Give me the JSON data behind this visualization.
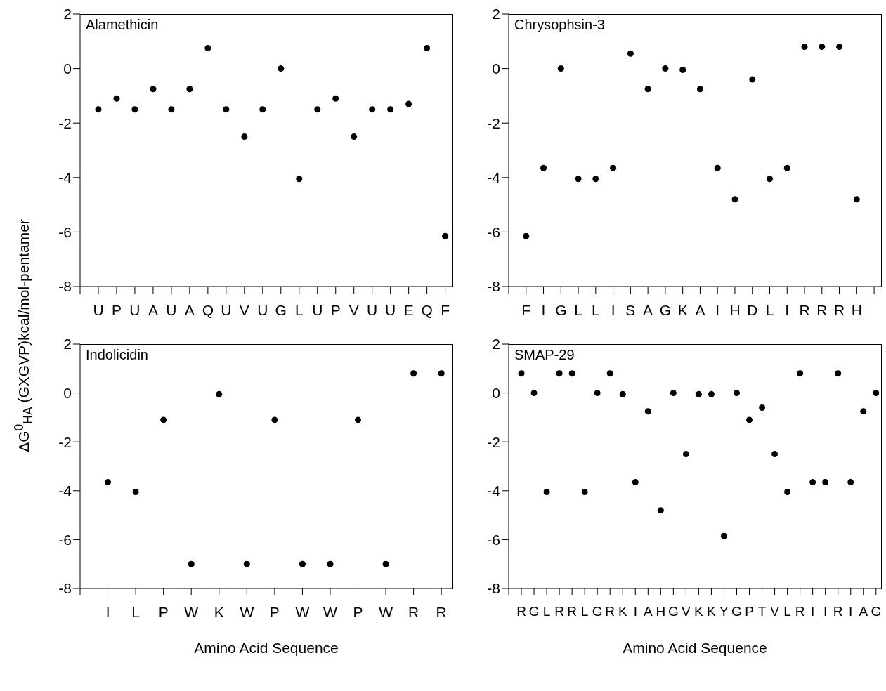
{
  "chart_data": [
    {
      "type": "scatter",
      "title": "Alamethicin",
      "ylabel": "ΔG$^{0}$$_{HA}$ (GXGVP)kcal/mol-pentamer",
      "categories": [
        null,
        "U",
        "P",
        "U",
        "A",
        "U",
        "A",
        "Q",
        "U",
        "V",
        "U",
        "G",
        "L",
        "U",
        "P",
        "V",
        "U",
        "U",
        "E",
        "Q",
        "F"
      ],
      "values": [
        null,
        -1.5,
        -1.1,
        -1.5,
        -0.75,
        -1.5,
        -0.75,
        0.75,
        -1.5,
        -2.5,
        -1.5,
        0,
        -4.05,
        -1.5,
        -1.1,
        -2.5,
        -1.5,
        -1.5,
        -1.3,
        0.75,
        -6.15
      ],
      "color": "#000000",
      "marker": "circle",
      "ylim": [
        -8,
        2
      ],
      "yticks": [
        -8,
        -6,
        -4,
        -2,
        0,
        2
      ]
    },
    {
      "type": "scatter",
      "title": "Chrysophsin-3",
      "categories": [
        null,
        "F",
        "I",
        "G",
        "L",
        "L",
        "I",
        "S",
        "A",
        "G",
        "K",
        "A",
        "I",
        "H",
        "D",
        "L",
        "I",
        "R",
        "R",
        "R",
        "H",
        null
      ],
      "values": [
        null,
        -6.15,
        -3.65,
        0,
        -4.05,
        -4.05,
        -3.65,
        0.55,
        -0.75,
        0,
        -0.05,
        -0.75,
        -3.65,
        -4.8,
        -0.4,
        -4.05,
        -3.65,
        0.8,
        0.8,
        0.8,
        -4.8,
        null
      ],
      "color": "#000000",
      "marker": "circle",
      "ylim": [
        -8,
        2
      ],
      "yticks": [
        -8,
        -6,
        -4,
        -2,
        0,
        2
      ]
    },
    {
      "type": "scatter",
      "title": "Indolicidin",
      "xlabel": "Amino Acid Sequence",
      "categories": [
        null,
        "I",
        "L",
        "P",
        "W",
        "K",
        "W",
        "P",
        "W",
        "W",
        "P",
        "W",
        "R",
        "R"
      ],
      "values": [
        null,
        -3.65,
        -4.05,
        -1.1,
        -7,
        -0.05,
        -7,
        -1.1,
        -7,
        -7,
        -1.1,
        -7,
        0.8,
        0.8
      ],
      "color": "#000000",
      "marker": "circle",
      "ylim": [
        -8,
        2
      ],
      "yticks": [
        -8,
        -6,
        -4,
        -2,
        0,
        2
      ]
    },
    {
      "type": "scatter",
      "title": "SMAP-29",
      "xlabel": "Amino Acid Sequence",
      "categories": [
        null,
        "R",
        "G",
        "L",
        "R",
        "R",
        "L",
        "G",
        "R",
        "K",
        "I",
        "A",
        "H",
        "G",
        "V",
        "K",
        "K",
        "Y",
        "G",
        "P",
        "T",
        "V",
        "L",
        "R",
        "I",
        "I",
        "R",
        "I",
        "A",
        "G"
      ],
      "values": [
        null,
        0.8,
        0,
        -4.05,
        0.8,
        0.8,
        -4.05,
        0,
        0.8,
        -0.05,
        -3.65,
        -0.75,
        -4.8,
        0,
        -2.5,
        -0.05,
        -0.05,
        -5.85,
        0,
        -1.1,
        -0.6,
        -2.5,
        -4.05,
        0.8,
        -3.65,
        -3.65,
        0.8,
        -3.65,
        -0.75,
        0
      ],
      "color": "#000000",
      "marker": "circle",
      "ylim": [
        -8,
        2
      ],
      "yticks": [
        -8,
        -6,
        -4,
        -2,
        0,
        2
      ]
    }
  ]
}
